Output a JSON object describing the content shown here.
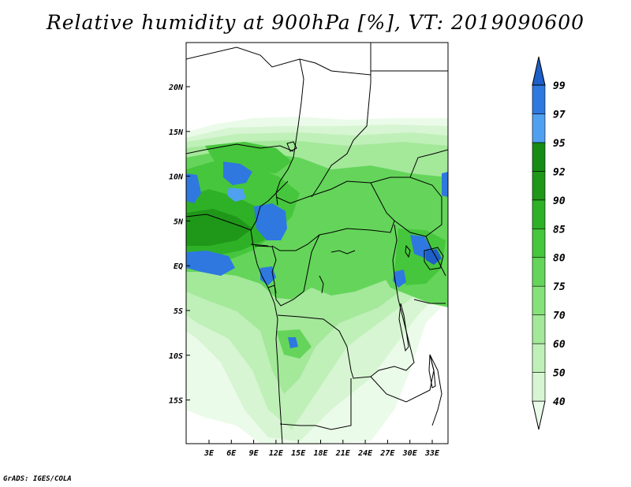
{
  "title": "Relative humidity at 900hPa [%], VT: 2019090600",
  "credit": "GrADS: IGES/COLA",
  "map": {
    "lat_labels": [
      "20N",
      "15N",
      "10N",
      "5N",
      "EQ",
      "5S",
      "10S",
      "15S"
    ],
    "lon_labels": [
      "3E",
      "6E",
      "9E",
      "12E",
      "15E",
      "18E",
      "21E",
      "24E",
      "27E",
      "30E",
      "33E"
    ]
  },
  "colorbar": {
    "levels": [
      "40",
      "50",
      "60",
      "70",
      "75",
      "80",
      "85",
      "90",
      "92",
      "95",
      "97",
      "99"
    ],
    "colors": [
      "#ebfbe9",
      "#d7f5d2",
      "#bff0b8",
      "#a4e89a",
      "#86e17a",
      "#64d55a",
      "#46c63c",
      "#2eb127",
      "#1f9719",
      "#168c14",
      "#4fa0f0",
      "#2e78e0",
      "#1e5fc8"
    ]
  }
}
